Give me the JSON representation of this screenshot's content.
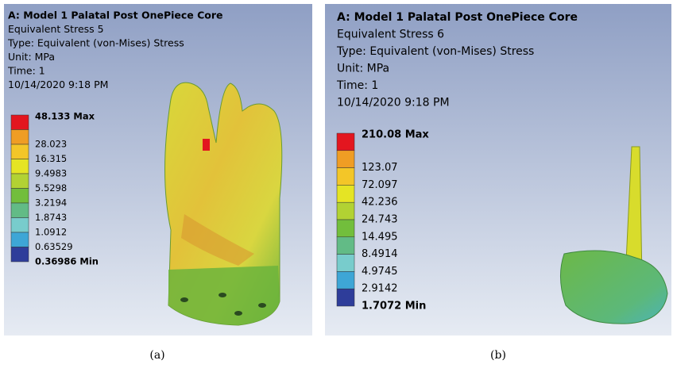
{
  "panels": [
    {
      "title": "A: Model 1 Palatal Post OnePiece Core",
      "lines": [
        "Equivalent Stress 5",
        "Type: Equivalent (von-Mises) Stress",
        "Unit: MPa",
        "Time: 1",
        "10/14/2020 9:18 PM"
      ],
      "legend": [
        "48.133 Max",
        "28.023",
        "16.315",
        "9.4983",
        "5.5298",
        "3.2194",
        "1.8743",
        "1.0912",
        "0.63529",
        "0.36986 Min"
      ],
      "caption": "(a)"
    },
    {
      "title": "A: Model 1 Palatal Post OnePiece Core",
      "lines": [
        "Equivalent Stress 6",
        "Type: Equivalent (von-Mises) Stress",
        "Unit: MPa",
        "Time: 1",
        "10/14/2020 9:18 PM"
      ],
      "legend": [
        "210.08 Max",
        "123.07",
        "72.097",
        "42.236",
        "24.743",
        "14.495",
        "8.4914",
        "4.9745",
        "2.9142",
        "1.7072 Min"
      ],
      "caption": "(b)"
    }
  ],
  "legend_colors": [
    "#e3161f",
    "#ef9d24",
    "#f3c628",
    "#e5e424",
    "#b2d233",
    "#72be3c",
    "#62bb86",
    "#78cccc",
    "#3ea6d6",
    "#2e3d9a"
  ]
}
